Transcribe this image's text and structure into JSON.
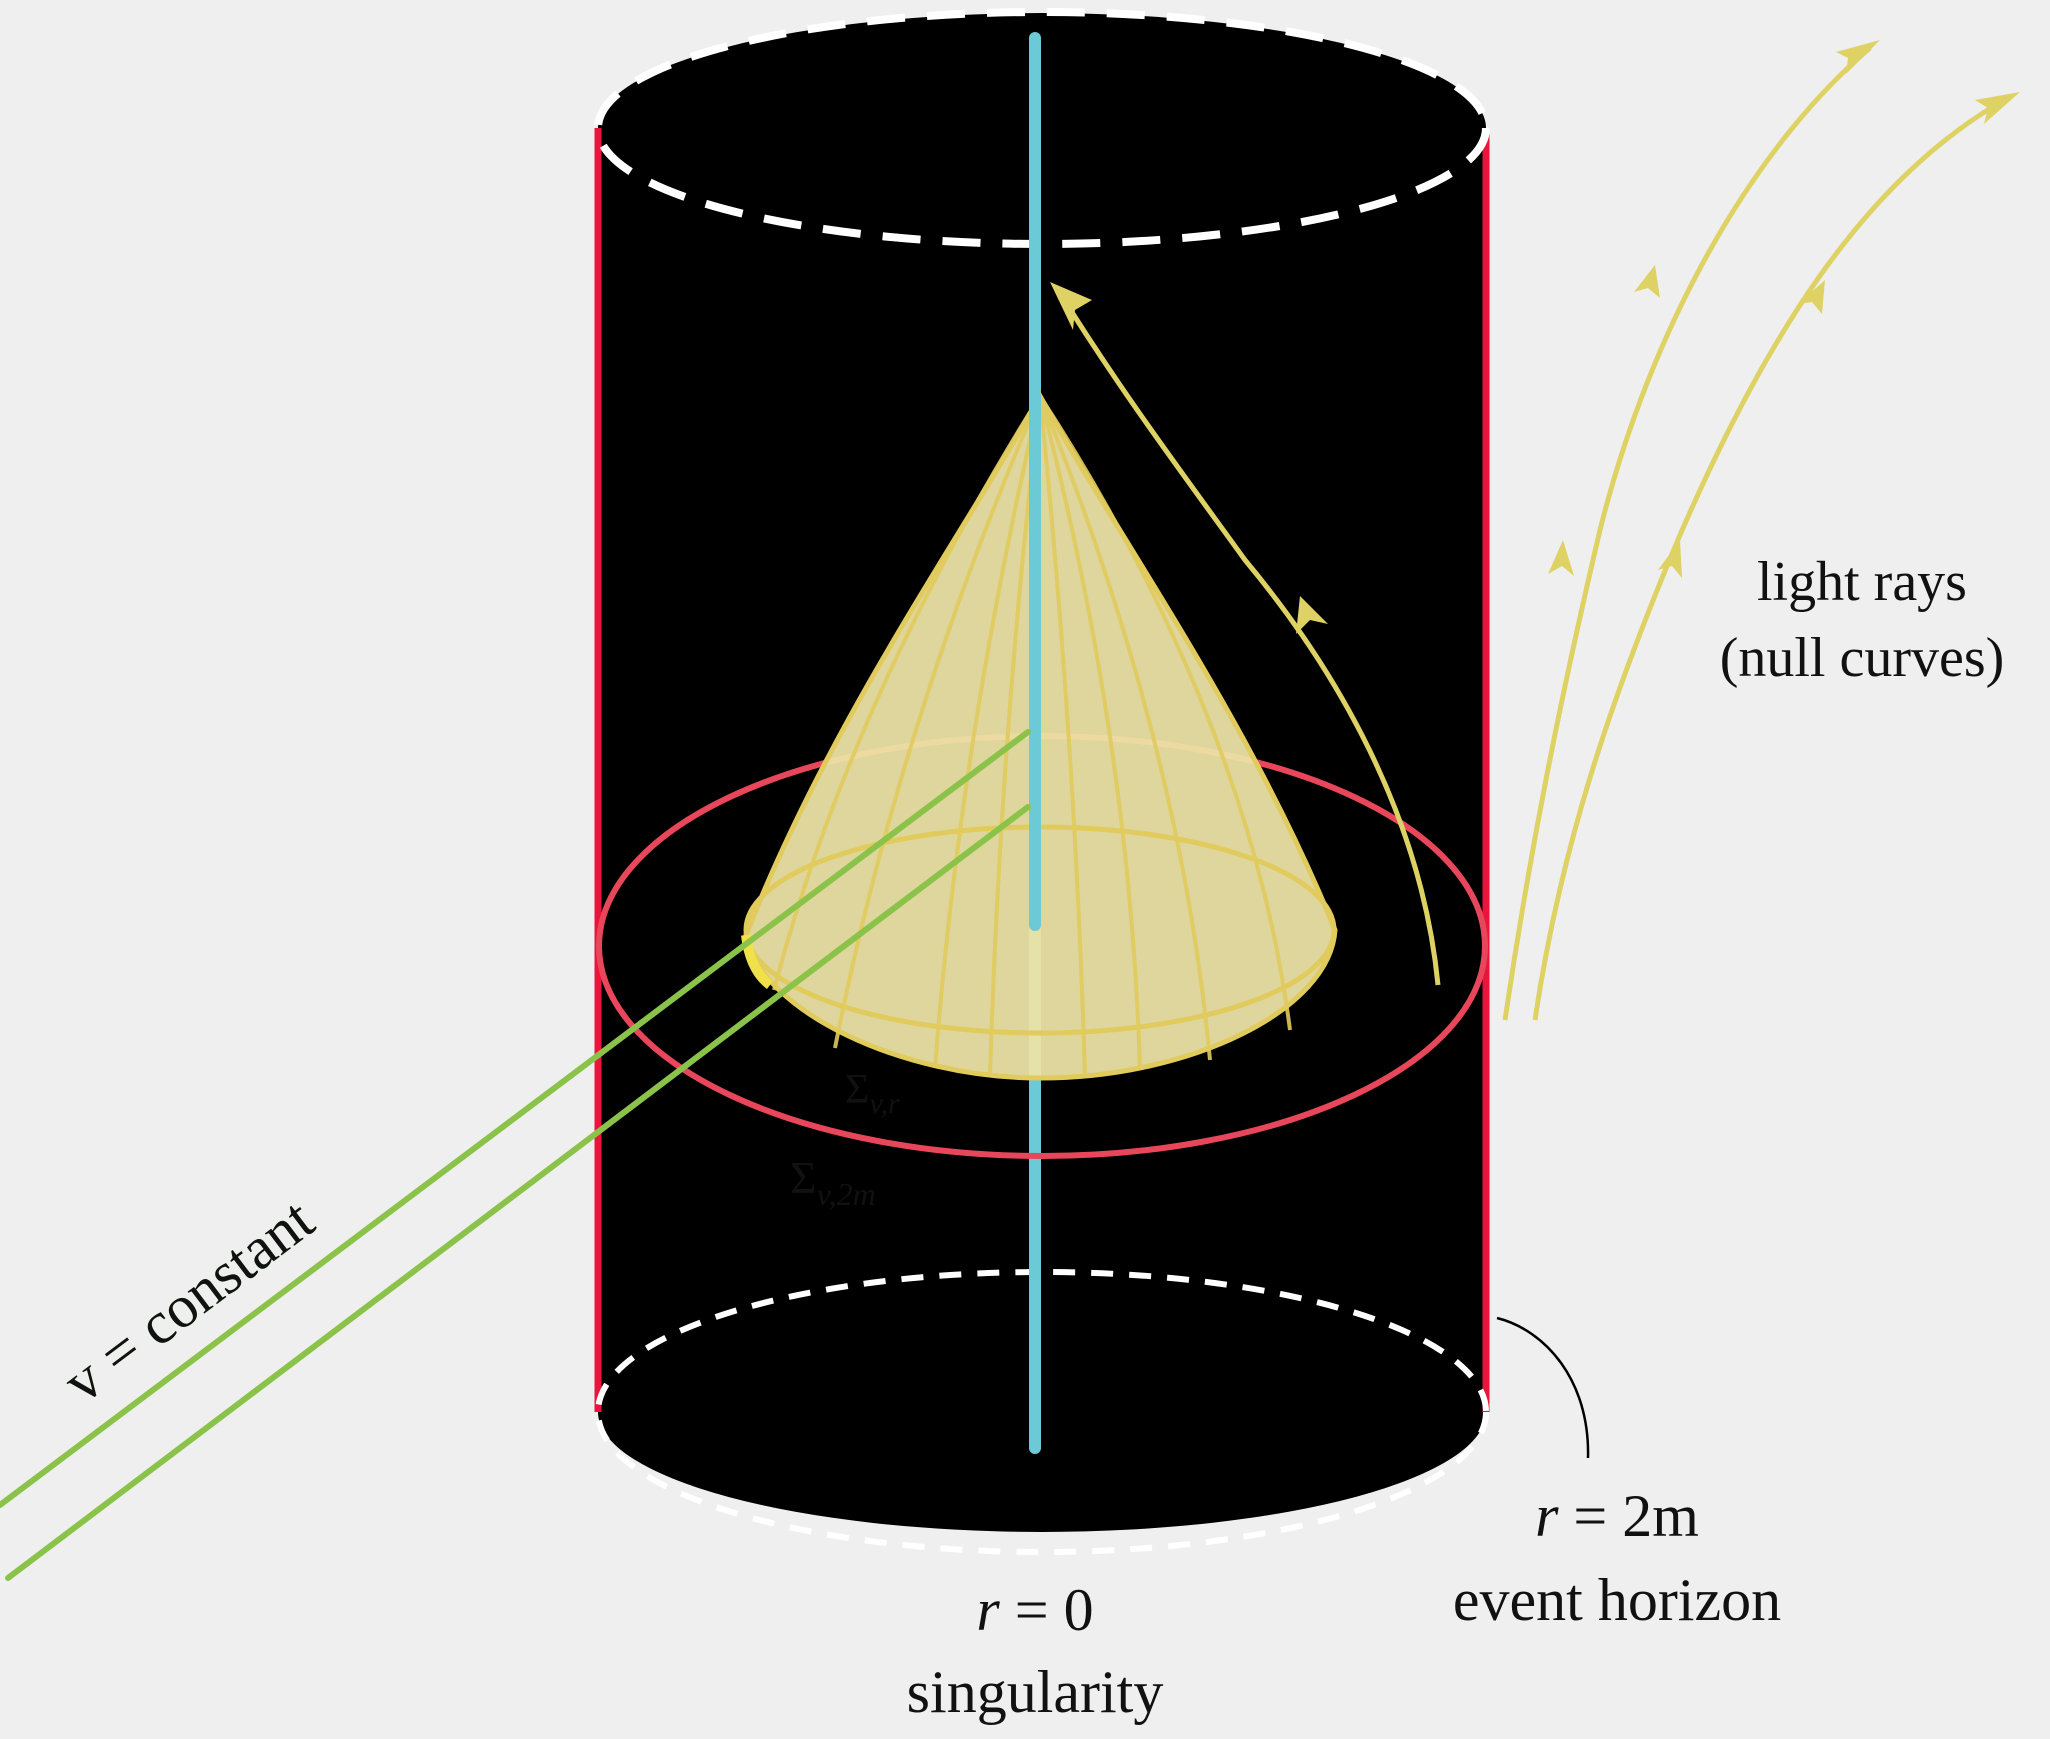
{
  "labels": {
    "v_constant": "v = constant",
    "light_rays": "light rays",
    "null_curves": "(null curves)",
    "sigma_symbol": "Σ",
    "sigma_vr_sub": "v,r",
    "sigma_v2m_sub": "v,2m",
    "horizon_eq_var": "r",
    "horizon_eq_value": " = 2m",
    "horizon_name": "event horizon",
    "singularity_eq_var": "r",
    "singularity_eq_value": " = 0",
    "singularity_name": "singularity"
  },
  "colors": {
    "background": "#efefef",
    "cylinder": "#000000",
    "cylinder_edge": "#e8163c",
    "dashed_ellipse": "#ffffff",
    "axis": "#6ccad6",
    "cone_fill": "#ece3a6",
    "cone_lines": "#e0cb5c",
    "horizon_ring": "#e8475b",
    "light_ray": "#ded264",
    "constant_line": "#8bc34a",
    "constant_text": "#0a4a1c",
    "sigma_vr_text": "#d8c448",
    "sigma_v2m_text": "#e0455a"
  }
}
